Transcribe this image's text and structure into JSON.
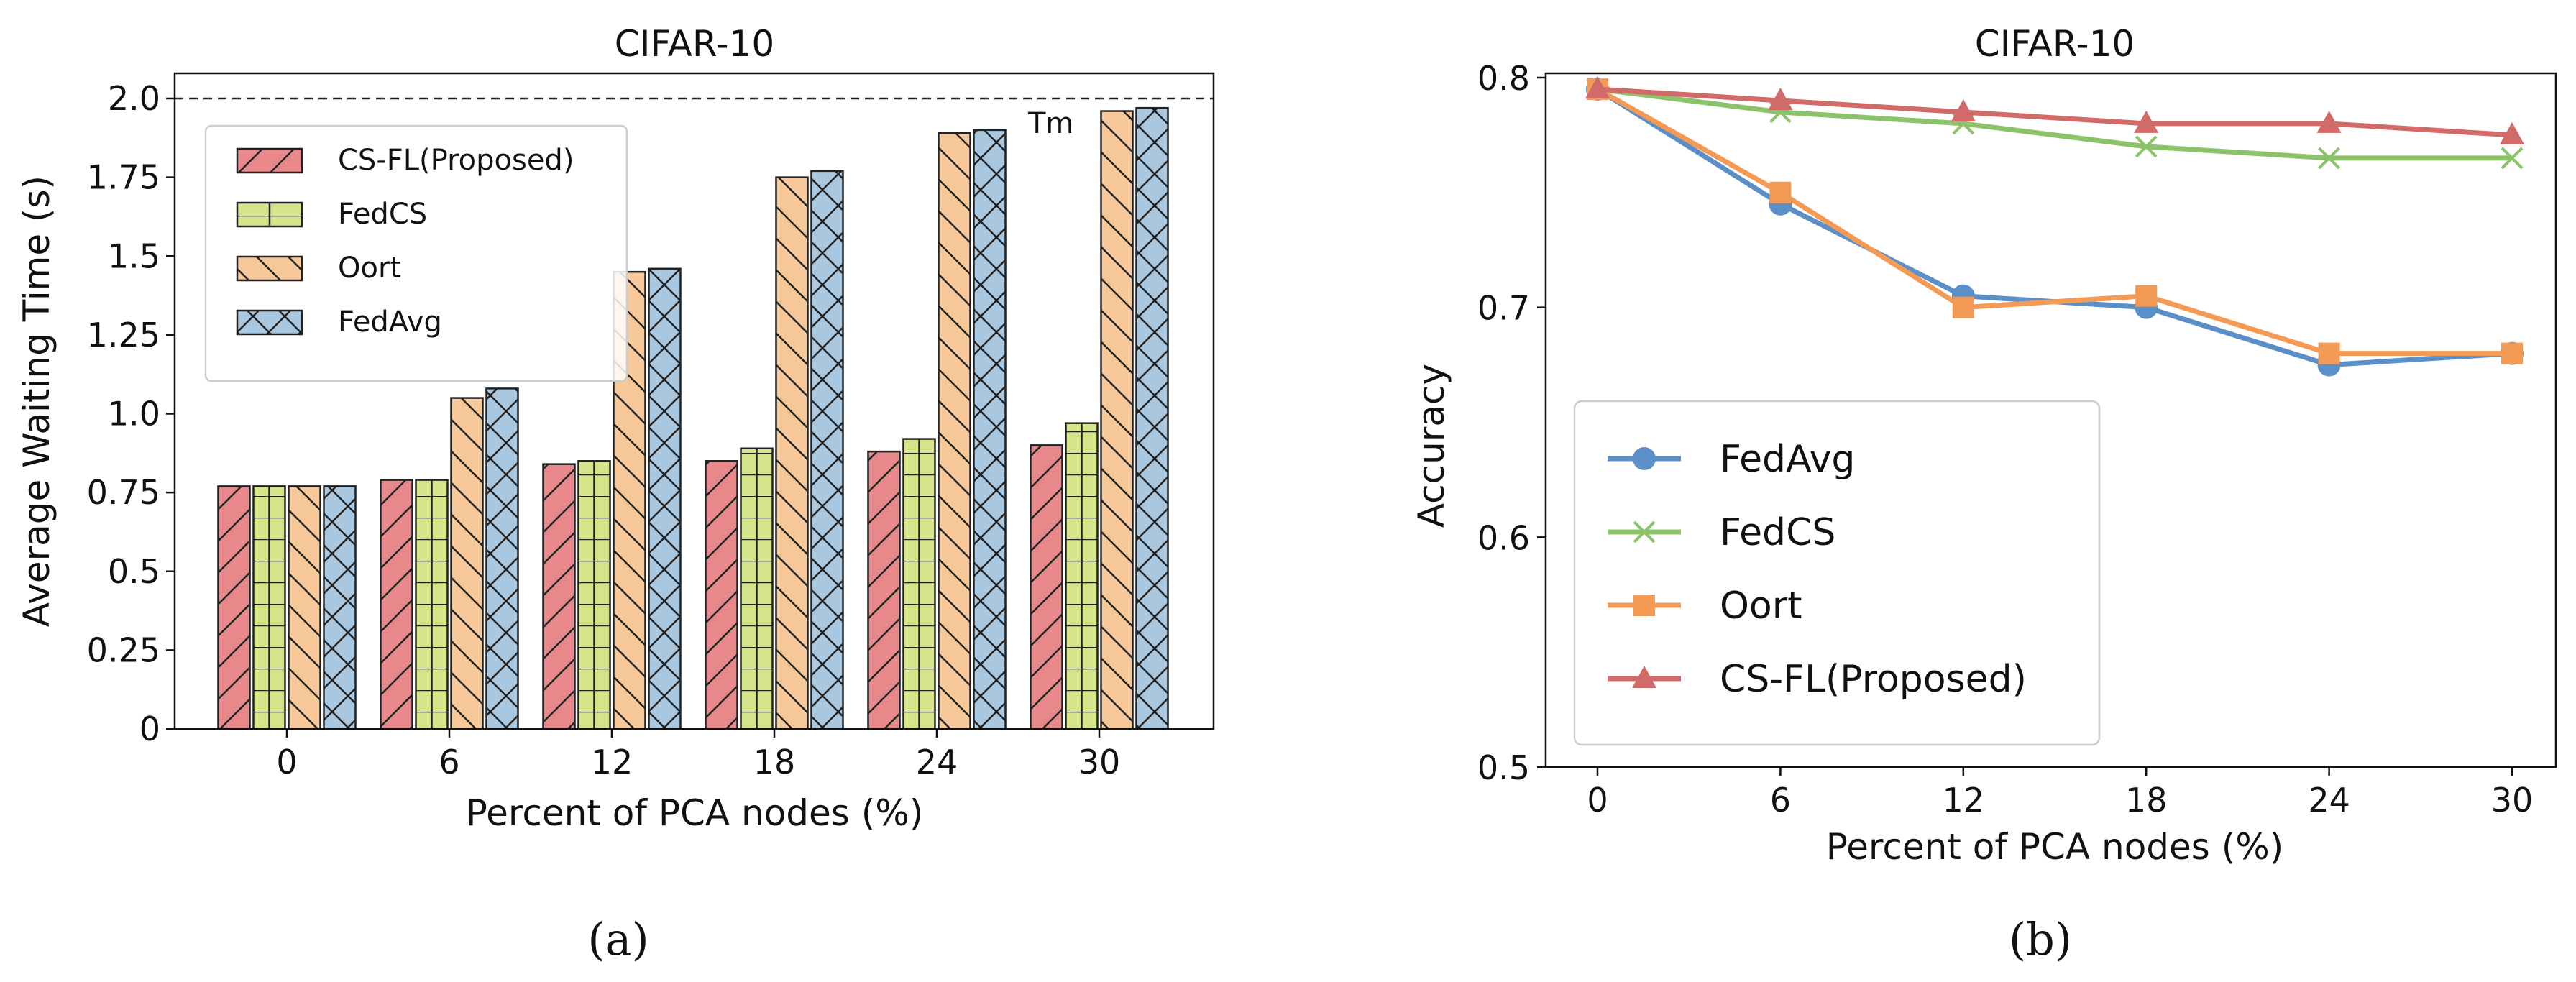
{
  "chart_data": [
    {
      "type": "bar",
      "title": "CIFAR-10",
      "xlabel": "Percent of PCA nodes (%)",
      "ylabel": "Average Waiting Time (s)",
      "ylim": [
        0,
        2.1
      ],
      "yticks": [
        "0",
        "0.25",
        "0.5",
        "0.75",
        "1.0",
        "1.25",
        "1.5",
        "1.75",
        "2.0"
      ],
      "categories": [
        "0",
        "6",
        "12",
        "18",
        "24",
        "30"
      ],
      "series": [
        {
          "name": "CS-FL(Proposed)",
          "color": "#e8888a",
          "hatch": "diag-up",
          "values": [
            0.77,
            0.79,
            0.84,
            0.85,
            0.88,
            0.9
          ]
        },
        {
          "name": "FedCS",
          "color": "#d4e58a",
          "hatch": "grid",
          "values": [
            0.77,
            0.79,
            0.85,
            0.89,
            0.92,
            0.97
          ]
        },
        {
          "name": "Oort",
          "color": "#f7c99a",
          "hatch": "diag-down",
          "values": [
            0.77,
            1.05,
            1.45,
            1.75,
            1.89,
            1.96
          ]
        },
        {
          "name": "FedAvg",
          "color": "#a9c8e0",
          "hatch": "cross",
          "values": [
            0.77,
            1.08,
            1.46,
            1.77,
            1.9,
            1.97
          ]
        }
      ],
      "threshold": {
        "label": "Tm",
        "value": 2.0
      },
      "legend": "upper-left",
      "caption": "(a)"
    },
    {
      "type": "line",
      "title": "CIFAR-10",
      "xlabel": "Percent of PCA nodes (%)",
      "ylabel": "Accuracy",
      "ylim": [
        0.5,
        0.8
      ],
      "yticks": [
        "0.5",
        "0.6",
        "0.7",
        "0.8"
      ],
      "x": [
        "0",
        "6",
        "12",
        "18",
        "24",
        "30"
      ],
      "series": [
        {
          "name": "FedAvg",
          "color": "#5b8fc7",
          "marker": "circle",
          "values": [
            0.795,
            0.745,
            0.705,
            0.7,
            0.675,
            0.68
          ]
        },
        {
          "name": "FedCS",
          "color": "#8cc36a",
          "marker": "x",
          "values": [
            0.795,
            0.785,
            0.78,
            0.77,
            0.765,
            0.765
          ]
        },
        {
          "name": "Oort",
          "color": "#f39a55",
          "marker": "square",
          "values": [
            0.795,
            0.75,
            0.7,
            0.705,
            0.68,
            0.68
          ]
        },
        {
          "name": "CS-FL(Proposed)",
          "color": "#d26a6a",
          "marker": "triangle",
          "values": [
            0.795,
            0.79,
            0.785,
            0.78,
            0.78,
            0.775
          ]
        }
      ],
      "legend": "lower-left",
      "caption": "(b)"
    }
  ]
}
